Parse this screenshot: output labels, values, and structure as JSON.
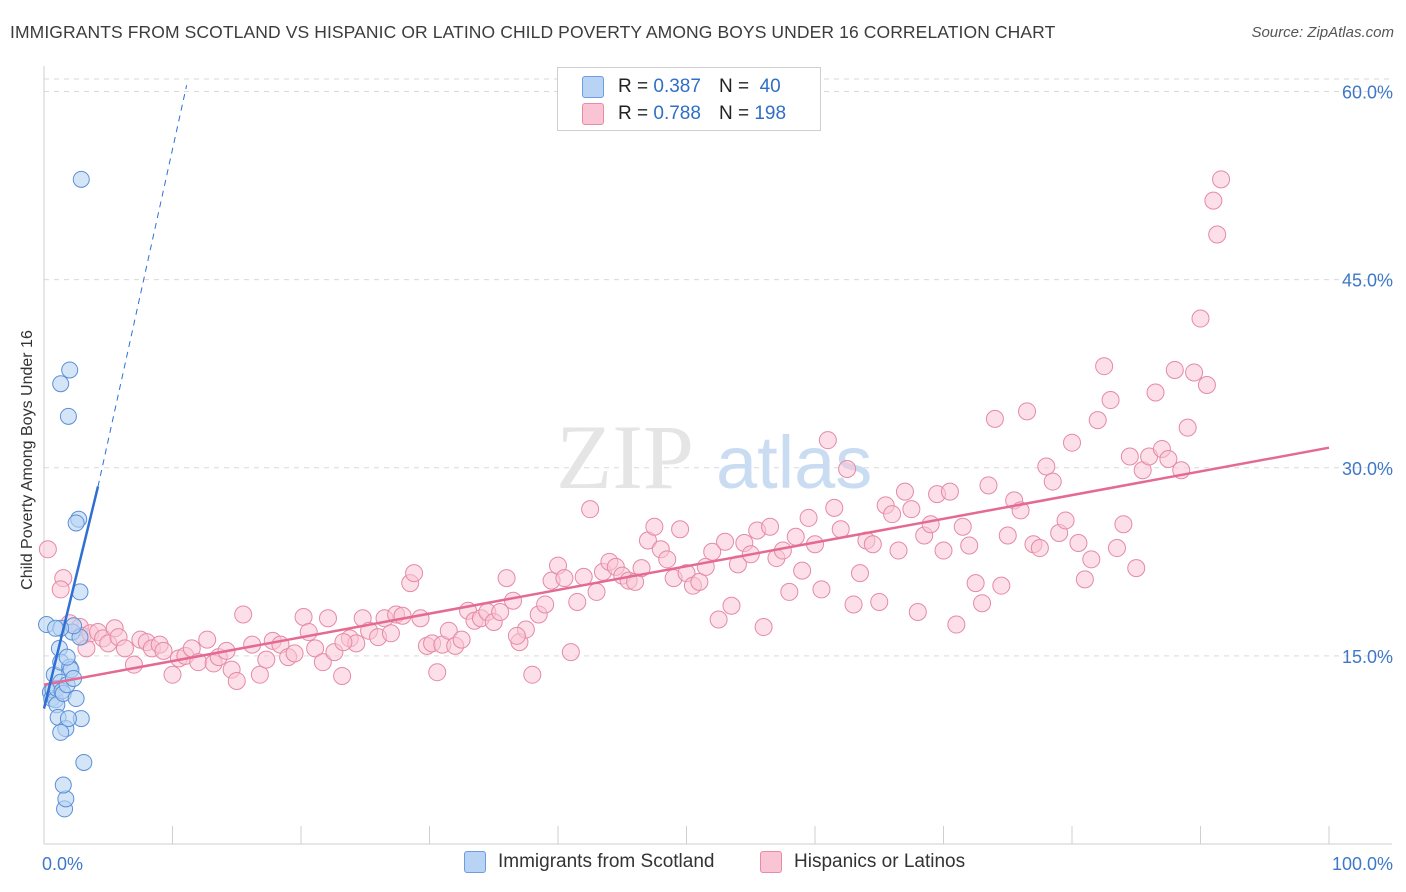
{
  "title": "IMMIGRANTS FROM SCOTLAND VS HISPANIC OR LATINO CHILD POVERTY AMONG BOYS UNDER 16 CORRELATION CHART",
  "source": "Source: ZipAtlas.com",
  "watermark": {
    "zip": "ZIP",
    "atlas": "atlas"
  },
  "legend": {
    "rows": [
      {
        "r_label": "R =",
        "r_value": "0.387",
        "n_label": "N =",
        "n_value": "40",
        "fill": "#b8d3f3",
        "stroke": "#6b9de0"
      },
      {
        "r_label": "R =",
        "r_value": "0.788",
        "n_label": "N =",
        "n_value": "198",
        "fill": "#f9c5d5",
        "stroke": "#e88aa8"
      }
    ]
  },
  "colors": {
    "scotland_fill": "#b8d3f3",
    "scotland_stroke": "#5b8fd6",
    "scotland_line": "#2f6fd3",
    "hispanic_fill": "#f9c5d5",
    "hispanic_stroke": "#e58aa6",
    "hispanic_line": "#e46a94",
    "tick_label": "#3d78c9",
    "grid": "#d9d9d9"
  },
  "chart_data": {
    "type": "scatter",
    "title": "IMMIGRANTS FROM SCOTLAND VS HISPANIC OR LATINO CHILD POVERTY AMONG BOYS UNDER 16 CORRELATION CHART",
    "xlabel": "",
    "ylabel": "Child Poverty Among Boys Under 16",
    "xlim": [
      0,
      100
    ],
    "ylim": [
      0,
      61
    ],
    "x_tick_labels": [
      "0.0%",
      "100.0%"
    ],
    "y_ticks": [
      15,
      30,
      45,
      60
    ],
    "y_tick_labels": [
      "15.0%",
      "30.0%",
      "45.0%",
      "60.0%"
    ],
    "grid": true,
    "legend_position": "top-center",
    "series": [
      {
        "name": "Immigrants from Scotland",
        "r": 0.387,
        "n": 40,
        "trend": {
          "x": [
            0,
            4.2
          ],
          "y": [
            10.8,
            28.5
          ],
          "extension_x": [
            4.2,
            11.1
          ],
          "extension_y": [
            28.5,
            60.5
          ]
        },
        "points": [
          [
            0.2,
            17.5
          ],
          [
            0.5,
            12.1
          ],
          [
            0.6,
            11.6
          ],
          [
            0.7,
            12.3
          ],
          [
            0.8,
            13.5
          ],
          [
            0.9,
            11.5
          ],
          [
            1.0,
            12.4
          ],
          [
            1.0,
            11.1
          ],
          [
            1.1,
            10.1
          ],
          [
            1.2,
            15.6
          ],
          [
            1.3,
            12.9
          ],
          [
            1.3,
            14.5
          ],
          [
            1.4,
            12.2
          ],
          [
            1.5,
            12.0
          ],
          [
            1.6,
            2.8
          ],
          [
            1.7,
            3.6
          ],
          [
            1.8,
            12.7
          ],
          [
            2.0,
            14.1
          ],
          [
            2.1,
            13.9
          ],
          [
            2.2,
            16.9
          ],
          [
            2.3,
            13.2
          ],
          [
            2.5,
            11.6
          ],
          [
            2.8,
            16.5
          ],
          [
            2.9,
            10.0
          ],
          [
            3.1,
            6.5
          ],
          [
            2.3,
            17.4
          ],
          [
            1.5,
            4.7
          ],
          [
            1.7,
            9.2
          ],
          [
            1.9,
            10.0
          ],
          [
            1.3,
            8.9
          ],
          [
            1.9,
            34.1
          ],
          [
            2.0,
            37.8
          ],
          [
            1.3,
            36.7
          ],
          [
            2.7,
            25.9
          ],
          [
            2.5,
            25.6
          ],
          [
            2.8,
            20.1
          ],
          [
            2.9,
            53.0
          ],
          [
            1.3,
            17.2
          ],
          [
            0.9,
            17.2
          ],
          [
            1.8,
            14.9
          ]
        ]
      },
      {
        "name": "Hispanics or Latinos",
        "r": 0.788,
        "n": 198,
        "trend": {
          "x": [
            0,
            100
          ],
          "y": [
            12.7,
            31.6
          ]
        },
        "points": [
          [
            0.3,
            23.5
          ],
          [
            1.5,
            21.2
          ],
          [
            1.3,
            20.3
          ],
          [
            2.0,
            17.6
          ],
          [
            2.8,
            17.3
          ],
          [
            3.0,
            16.6
          ],
          [
            3.3,
            15.6
          ],
          [
            3.6,
            16.8
          ],
          [
            4.2,
            16.9
          ],
          [
            4.6,
            16.4
          ],
          [
            5.0,
            16.0
          ],
          [
            5.5,
            17.2
          ],
          [
            5.8,
            16.5
          ],
          [
            6.3,
            15.6
          ],
          [
            7.0,
            14.3
          ],
          [
            7.5,
            16.3
          ],
          [
            8.0,
            16.1
          ],
          [
            8.4,
            15.6
          ],
          [
            9.0,
            15.9
          ],
          [
            9.3,
            15.4
          ],
          [
            10.0,
            13.5
          ],
          [
            10.5,
            14.8
          ],
          [
            11.0,
            15.0
          ],
          [
            11.5,
            15.6
          ],
          [
            12.0,
            14.5
          ],
          [
            12.7,
            16.3
          ],
          [
            13.2,
            14.4
          ],
          [
            13.6,
            14.9
          ],
          [
            14.2,
            15.4
          ],
          [
            14.6,
            13.9
          ],
          [
            15.0,
            13.0
          ],
          [
            15.5,
            18.3
          ],
          [
            16.2,
            15.9
          ],
          [
            16.8,
            13.5
          ],
          [
            17.3,
            14.7
          ],
          [
            17.8,
            16.2
          ],
          [
            18.4,
            15.9
          ],
          [
            19.0,
            14.9
          ],
          [
            19.5,
            15.2
          ],
          [
            20.2,
            18.1
          ],
          [
            20.6,
            16.9
          ],
          [
            21.1,
            15.6
          ],
          [
            21.7,
            14.5
          ],
          [
            22.1,
            18.0
          ],
          [
            22.6,
            15.3
          ],
          [
            23.2,
            13.4
          ],
          [
            23.8,
            16.4
          ],
          [
            24.3,
            16.0
          ],
          [
            24.8,
            18.0
          ],
          [
            25.3,
            17.0
          ],
          [
            26.0,
            16.5
          ],
          [
            26.5,
            18.0
          ],
          [
            27.0,
            16.8
          ],
          [
            27.4,
            18.3
          ],
          [
            27.9,
            18.2
          ],
          [
            28.5,
            20.8
          ],
          [
            28.8,
            21.6
          ],
          [
            29.3,
            18.0
          ],
          [
            29.8,
            15.8
          ],
          [
            30.2,
            16.0
          ],
          [
            30.6,
            13.7
          ],
          [
            31.0,
            15.9
          ],
          [
            31.5,
            17.0
          ],
          [
            32.0,
            15.8
          ],
          [
            32.5,
            16.3
          ],
          [
            33.0,
            18.6
          ],
          [
            33.5,
            17.8
          ],
          [
            34.0,
            18.0
          ],
          [
            34.5,
            18.5
          ],
          [
            35.0,
            17.7
          ],
          [
            35.5,
            18.5
          ],
          [
            36.0,
            21.2
          ],
          [
            36.5,
            19.4
          ],
          [
            37.0,
            16.1
          ],
          [
            37.5,
            17.1
          ],
          [
            38.0,
            13.5
          ],
          [
            38.5,
            18.3
          ],
          [
            39.0,
            19.1
          ],
          [
            39.5,
            21.0
          ],
          [
            40.0,
            22.2
          ],
          [
            40.5,
            21.2
          ],
          [
            41.0,
            15.3
          ],
          [
            41.5,
            19.3
          ],
          [
            42.0,
            21.3
          ],
          [
            42.5,
            26.7
          ],
          [
            43.0,
            20.1
          ],
          [
            43.5,
            21.7
          ],
          [
            44.0,
            22.5
          ],
          [
            44.5,
            22.1
          ],
          [
            45.0,
            21.4
          ],
          [
            45.5,
            21.0
          ],
          [
            46.0,
            20.9
          ],
          [
            46.5,
            22.0
          ],
          [
            47.0,
            24.2
          ],
          [
            47.5,
            25.3
          ],
          [
            48.0,
            23.5
          ],
          [
            48.5,
            22.7
          ],
          [
            49.0,
            21.2
          ],
          [
            49.5,
            25.1
          ],
          [
            50.0,
            21.6
          ],
          [
            50.5,
            20.6
          ],
          [
            51.0,
            20.9
          ],
          [
            51.5,
            22.1
          ],
          [
            52.0,
            23.3
          ],
          [
            52.5,
            17.9
          ],
          [
            53.0,
            24.1
          ],
          [
            53.5,
            19.0
          ],
          [
            54.0,
            22.3
          ],
          [
            54.5,
            24.0
          ],
          [
            55.0,
            23.1
          ],
          [
            55.5,
            25.0
          ],
          [
            56.0,
            17.3
          ],
          [
            56.5,
            25.3
          ],
          [
            57.0,
            22.8
          ],
          [
            57.5,
            23.4
          ],
          [
            58.0,
            20.1
          ],
          [
            58.5,
            24.5
          ],
          [
            59.0,
            21.8
          ],
          [
            59.5,
            26.0
          ],
          [
            60.0,
            23.9
          ],
          [
            60.5,
            20.3
          ],
          [
            61.0,
            32.2
          ],
          [
            61.5,
            26.8
          ],
          [
            62.0,
            25.1
          ],
          [
            62.5,
            29.9
          ],
          [
            63.0,
            19.1
          ],
          [
            63.5,
            21.6
          ],
          [
            64.0,
            24.2
          ],
          [
            64.5,
            23.9
          ],
          [
            65.0,
            19.3
          ],
          [
            65.5,
            27.0
          ],
          [
            66.0,
            26.3
          ],
          [
            66.5,
            23.4
          ],
          [
            67.0,
            28.1
          ],
          [
            67.5,
            26.7
          ],
          [
            68.0,
            18.5
          ],
          [
            68.5,
            24.6
          ],
          [
            69.0,
            25.5
          ],
          [
            69.5,
            27.9
          ],
          [
            70.0,
            23.4
          ],
          [
            70.5,
            28.1
          ],
          [
            71.0,
            17.5
          ],
          [
            71.5,
            25.3
          ],
          [
            72.0,
            23.8
          ],
          [
            72.5,
            20.8
          ],
          [
            73.0,
            19.2
          ],
          [
            73.5,
            28.6
          ],
          [
            74.0,
            33.9
          ],
          [
            74.5,
            20.6
          ],
          [
            75.0,
            24.6
          ],
          [
            75.5,
            27.4
          ],
          [
            76.0,
            26.6
          ],
          [
            76.5,
            34.5
          ],
          [
            77.0,
            23.9
          ],
          [
            77.5,
            23.6
          ],
          [
            78.0,
            30.1
          ],
          [
            78.5,
            28.9
          ],
          [
            79.0,
            24.8
          ],
          [
            79.5,
            25.8
          ],
          [
            80.0,
            32.0
          ],
          [
            80.5,
            24.0
          ],
          [
            81.0,
            21.1
          ],
          [
            81.5,
            22.7
          ],
          [
            82.0,
            33.8
          ],
          [
            82.5,
            38.1
          ],
          [
            83.0,
            35.4
          ],
          [
            83.5,
            23.6
          ],
          [
            84.0,
            25.5
          ],
          [
            84.5,
            30.9
          ],
          [
            85.0,
            22.0
          ],
          [
            85.5,
            29.8
          ],
          [
            86.0,
            30.9
          ],
          [
            86.5,
            36.0
          ],
          [
            87.0,
            31.5
          ],
          [
            87.5,
            30.7
          ],
          [
            88.0,
            37.8
          ],
          [
            88.5,
            29.8
          ],
          [
            89.0,
            33.2
          ],
          [
            89.5,
            37.6
          ],
          [
            90.0,
            41.9
          ],
          [
            90.5,
            36.6
          ],
          [
            91.0,
            51.3
          ],
          [
            91.3,
            48.6
          ],
          [
            91.6,
            53.0
          ],
          [
            23.3,
            16.1
          ],
          [
            36.8,
            16.6
          ]
        ]
      }
    ]
  },
  "bottom_legend": [
    {
      "label": "Immigrants from Scotland",
      "fill": "#b8d3f3",
      "stroke": "#6b9de0"
    },
    {
      "label": "Hispanics or Latinos",
      "fill": "#f9c5d5",
      "stroke": "#e88aa8"
    }
  ]
}
